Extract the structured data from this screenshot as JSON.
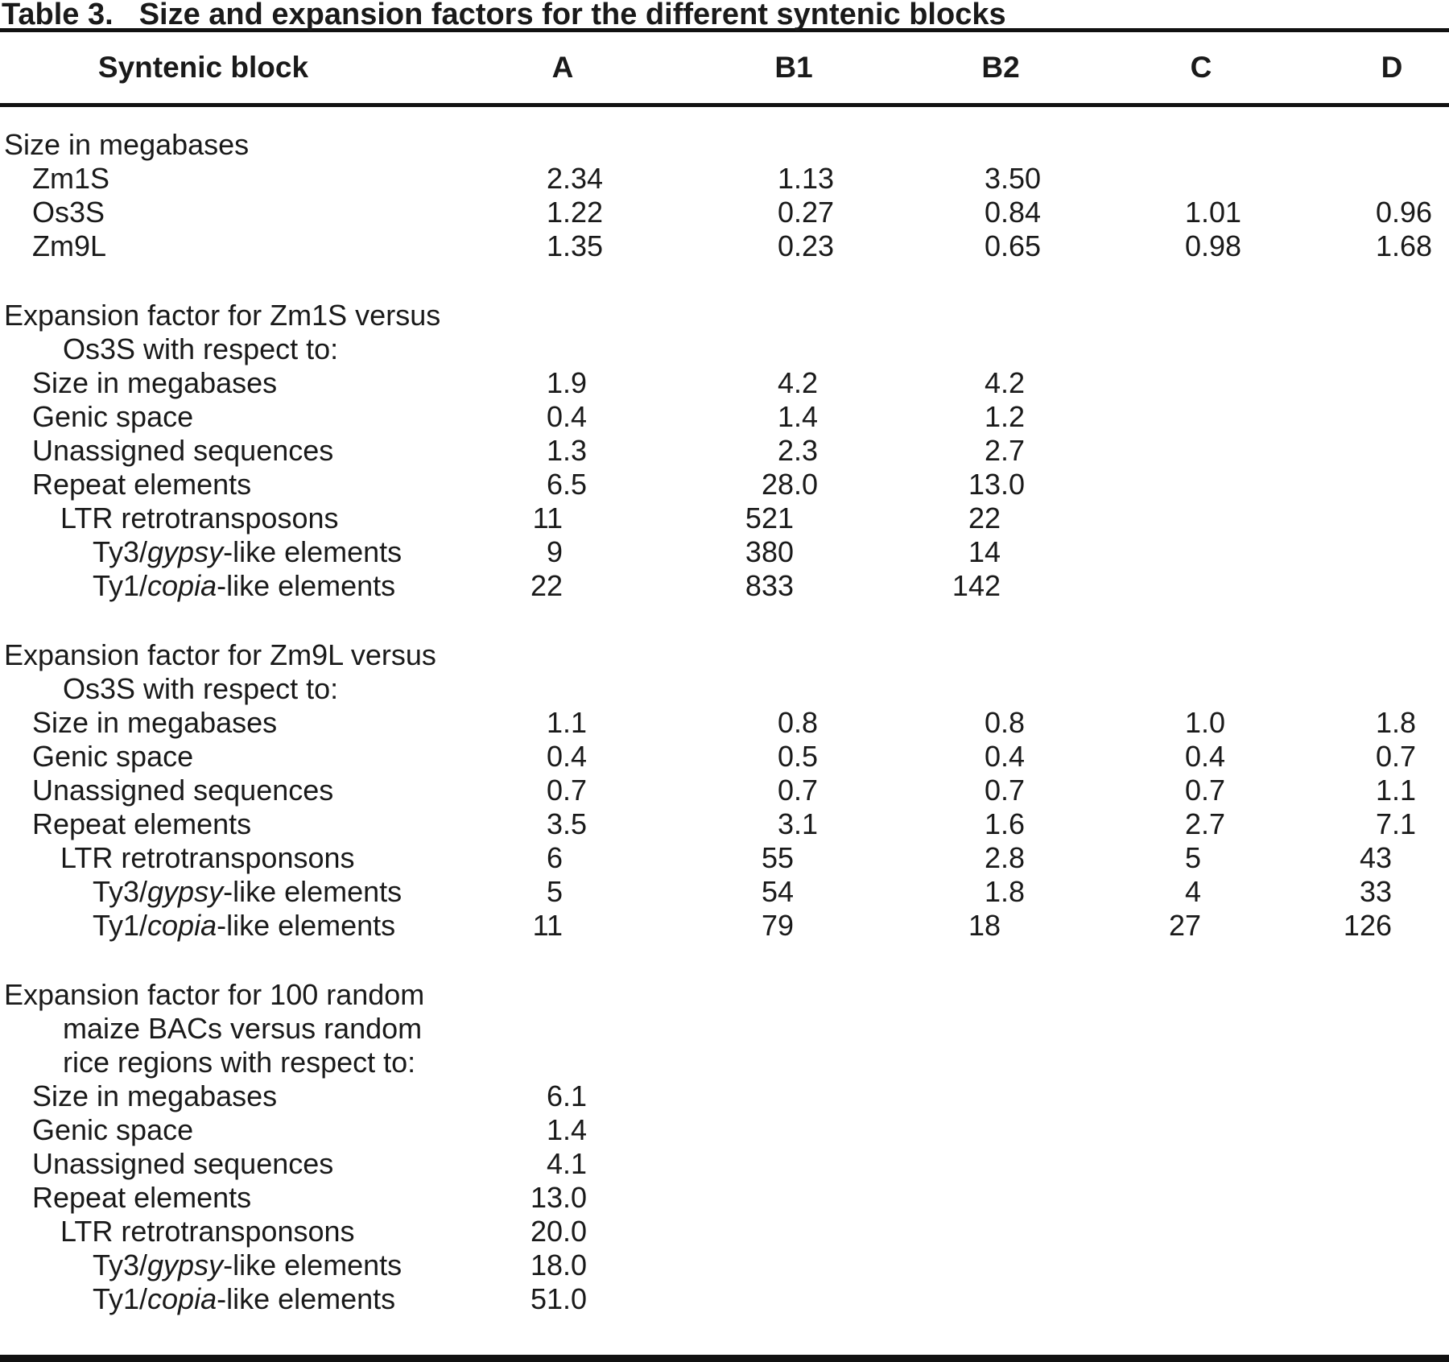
{
  "colors": {
    "background": "#ffffff",
    "text": "#1a1a1a",
    "rule": "#111111"
  },
  "table": {
    "title_prefix": "Table 3.",
    "title": "Size and expansion factors for the different syntenic blocks",
    "header": {
      "label": "Syntenic block",
      "cols": [
        "A",
        "B1",
        "B2",
        "C",
        "D"
      ]
    },
    "rows": [
      {
        "indent": 0,
        "label": [
          [
            "Size in megabases",
            false
          ]
        ]
      },
      {
        "indent": 1,
        "label": [
          [
            "Zm1S",
            false
          ]
        ],
        "values": [
          "2.34",
          "1.13",
          "3.50",
          "",
          ""
        ]
      },
      {
        "indent": 1,
        "label": [
          [
            "Os3S",
            false
          ]
        ],
        "values": [
          "1.22",
          "0.27",
          "0.84",
          "1.01",
          "0.96"
        ]
      },
      {
        "indent": 1,
        "label": [
          [
            "Zm9L",
            false
          ]
        ],
        "values": [
          "1.35",
          "0.23",
          "0.65",
          "0.98",
          "1.68"
        ]
      },
      {
        "spacer": true
      },
      {
        "indent": 0,
        "label": [
          [
            "Expansion factor for Zm1S versus",
            false
          ]
        ]
      },
      {
        "indent": "c",
        "label": [
          [
            "Os3S with respect to:",
            false
          ]
        ]
      },
      {
        "indent": 1,
        "label": [
          [
            "Size in megabases",
            false
          ]
        ],
        "values": [
          "1.9",
          "4.2",
          "4.2",
          "",
          ""
        ]
      },
      {
        "indent": 1,
        "label": [
          [
            "Genic space",
            false
          ]
        ],
        "values": [
          "0.4",
          "1.4",
          "1.2",
          "",
          ""
        ]
      },
      {
        "indent": 1,
        "label": [
          [
            "Unassigned sequences",
            false
          ]
        ],
        "values": [
          "1.3",
          "2.3",
          "2.7",
          "",
          ""
        ]
      },
      {
        "indent": 1,
        "label": [
          [
            "Repeat elements",
            false
          ]
        ],
        "values": [
          "6.5",
          "28.0",
          "13.0",
          "",
          ""
        ]
      },
      {
        "indent": 2,
        "label": [
          [
            "LTR retrotransposons",
            false
          ]
        ],
        "values": [
          "11",
          "521",
          "22",
          "",
          ""
        ]
      },
      {
        "indent": 3,
        "label": [
          [
            "Ty3/",
            false
          ],
          [
            "gypsy",
            true
          ],
          [
            "-like elements",
            false
          ]
        ],
        "values": [
          "9",
          "380",
          "14",
          "",
          ""
        ]
      },
      {
        "indent": 3,
        "label": [
          [
            "Ty1/",
            false
          ],
          [
            "copia",
            true
          ],
          [
            "-like elements",
            false
          ]
        ],
        "values": [
          "22",
          "833",
          "142",
          "",
          ""
        ]
      },
      {
        "spacer": true
      },
      {
        "indent": 0,
        "label": [
          [
            "Expansion factor for Zm9L versus",
            false
          ]
        ]
      },
      {
        "indent": "c",
        "label": [
          [
            "Os3S with respect to:",
            false
          ]
        ]
      },
      {
        "indent": 1,
        "label": [
          [
            "Size in megabases",
            false
          ]
        ],
        "values": [
          "1.1",
          "0.8",
          "0.8",
          "1.0",
          "1.8"
        ]
      },
      {
        "indent": 1,
        "label": [
          [
            "Genic space",
            false
          ]
        ],
        "values": [
          "0.4",
          "0.5",
          "0.4",
          "0.4",
          "0.7"
        ]
      },
      {
        "indent": 1,
        "label": [
          [
            "Unassigned sequences",
            false
          ]
        ],
        "values": [
          "0.7",
          "0.7",
          "0.7",
          "0.7",
          "1.1"
        ]
      },
      {
        "indent": 1,
        "label": [
          [
            "Repeat elements",
            false
          ]
        ],
        "values": [
          "3.5",
          "3.1",
          "1.6",
          "2.7",
          "7.1"
        ]
      },
      {
        "indent": 2,
        "label": [
          [
            "LTR retrotransponsons",
            false
          ]
        ],
        "values": [
          "6",
          "55",
          "2.8",
          "5",
          "43"
        ]
      },
      {
        "indent": 3,
        "label": [
          [
            "Ty3/",
            false
          ],
          [
            "gypsy",
            true
          ],
          [
            "-like elements",
            false
          ]
        ],
        "values": [
          "5",
          "54",
          "1.8",
          "4",
          "33"
        ]
      },
      {
        "indent": 3,
        "label": [
          [
            "Ty1/",
            false
          ],
          [
            "copia",
            true
          ],
          [
            "-like elements",
            false
          ]
        ],
        "values": [
          "11",
          "79",
          "18",
          "27",
          "126"
        ]
      },
      {
        "spacer": true
      },
      {
        "indent": 0,
        "label": [
          [
            "Expansion factor for 100 random",
            false
          ]
        ]
      },
      {
        "indent": "c",
        "label": [
          [
            "maize BACs versus random",
            false
          ]
        ]
      },
      {
        "indent": "c",
        "label": [
          [
            "rice regions with respect to:",
            false
          ]
        ]
      },
      {
        "indent": 1,
        "label": [
          [
            "Size in megabases",
            false
          ]
        ],
        "values": [
          "6.1",
          "",
          "",
          "",
          ""
        ]
      },
      {
        "indent": 1,
        "label": [
          [
            "Genic space",
            false
          ]
        ],
        "values": [
          "1.4",
          "",
          "",
          "",
          ""
        ]
      },
      {
        "indent": 1,
        "label": [
          [
            "Unassigned sequences",
            false
          ]
        ],
        "values": [
          "4.1",
          "",
          "",
          "",
          ""
        ]
      },
      {
        "indent": 1,
        "label": [
          [
            "Repeat elements",
            false
          ]
        ],
        "values": [
          "13.0",
          "",
          "",
          "",
          ""
        ]
      },
      {
        "indent": 2,
        "label": [
          [
            "LTR retrotransponsons",
            false
          ]
        ],
        "values": [
          "20.0",
          "",
          "",
          "",
          ""
        ]
      },
      {
        "indent": 3,
        "label": [
          [
            "Ty3/",
            false
          ],
          [
            "gypsy",
            true
          ],
          [
            "-like elements",
            false
          ]
        ],
        "values": [
          "18.0",
          "",
          "",
          "",
          ""
        ]
      },
      {
        "indent": 3,
        "label": [
          [
            "Ty1/",
            false
          ],
          [
            "copia",
            true
          ],
          [
            "-like elements",
            false
          ]
        ],
        "values": [
          "51.0",
          "",
          "",
          "",
          ""
        ]
      }
    ]
  }
}
